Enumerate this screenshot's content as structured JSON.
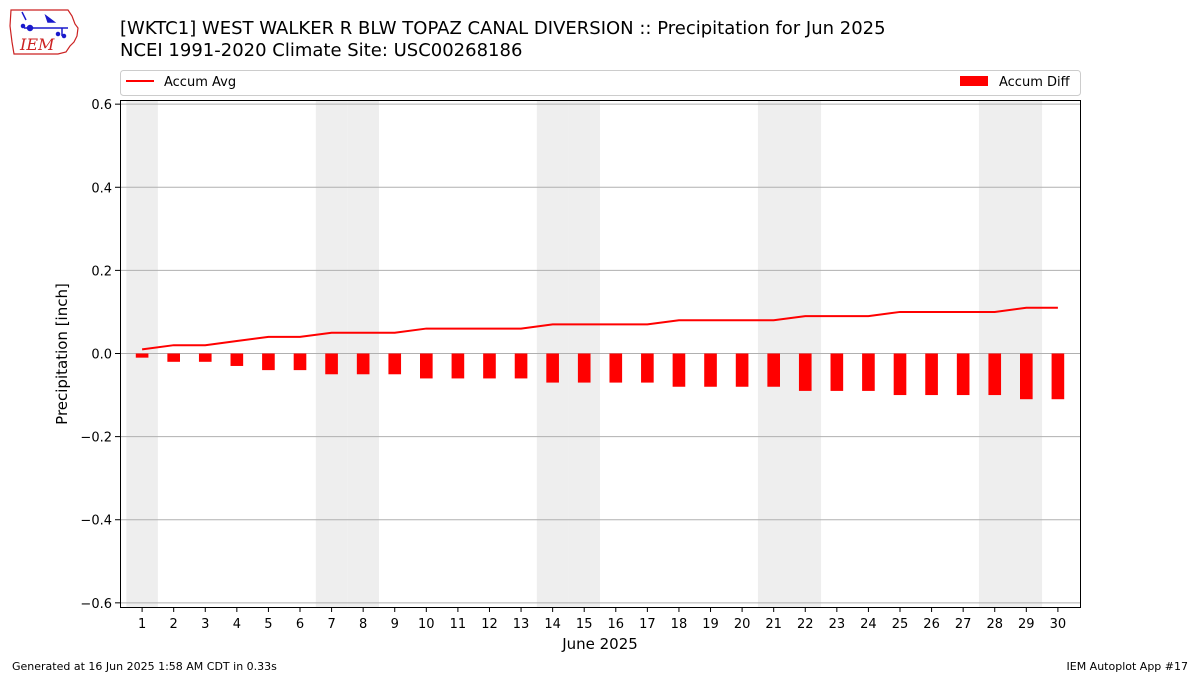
{
  "header": {
    "title_line1": "[WKTC1] WEST WALKER R BLW TOPAZ CANAL DIVERSION :: Precipitation for Jun 2025",
    "title_line2": "NCEI 1991-2020 Climate Site: USC00268186",
    "logo_text": "IEM"
  },
  "footer": {
    "generated": "Generated at 16 Jun 2025 1:58 AM CDT in 0.33s",
    "app": "IEM Autoplot App #17"
  },
  "colors": {
    "accent": "#ff0000",
    "weekend_shade": "#eeeeee",
    "grid": "#b0b0b0",
    "logo_red": "#cc2222",
    "logo_blue": "#1a1acc"
  },
  "chart_data": {
    "type": "bar",
    "xlabel": "June 2025",
    "ylabel": "Precipitation [inch]",
    "ylim": [
      -0.61,
      0.61
    ],
    "yticks": [
      -0.6,
      -0.4,
      -0.2,
      0.0,
      0.2,
      0.4,
      0.6
    ],
    "ytick_labels": [
      "−0.6",
      "−0.4",
      "−0.2",
      "0.0",
      "0.2",
      "0.4",
      "0.6"
    ],
    "grid": "horizontal",
    "legend_position": "top",
    "weekend_days": [
      1,
      7,
      8,
      14,
      15,
      21,
      22,
      28,
      29
    ],
    "categories": [
      1,
      2,
      3,
      4,
      5,
      6,
      7,
      8,
      9,
      10,
      11,
      12,
      13,
      14,
      15,
      16,
      17,
      18,
      19,
      20,
      21,
      22,
      23,
      24,
      25,
      26,
      27,
      28,
      29,
      30
    ],
    "series": [
      {
        "name": "Accum Avg",
        "kind": "line",
        "color": "#ff0000",
        "values": [
          0.01,
          0.02,
          0.02,
          0.03,
          0.04,
          0.04,
          0.05,
          0.05,
          0.05,
          0.06,
          0.06,
          0.06,
          0.06,
          0.07,
          0.07,
          0.07,
          0.07,
          0.08,
          0.08,
          0.08,
          0.08,
          0.09,
          0.09,
          0.09,
          0.1,
          0.1,
          0.1,
          0.1,
          0.11,
          0.11
        ]
      },
      {
        "name": "Accum Diff",
        "kind": "bar",
        "color": "#ff0000",
        "values": [
          -0.01,
          -0.02,
          -0.02,
          -0.03,
          -0.04,
          -0.04,
          -0.05,
          -0.05,
          -0.05,
          -0.06,
          -0.06,
          -0.06,
          -0.06,
          -0.07,
          -0.07,
          -0.07,
          -0.07,
          -0.08,
          -0.08,
          -0.08,
          -0.08,
          -0.09,
          -0.09,
          -0.09,
          -0.1,
          -0.1,
          -0.1,
          -0.1,
          -0.11,
          -0.11
        ]
      }
    ]
  }
}
